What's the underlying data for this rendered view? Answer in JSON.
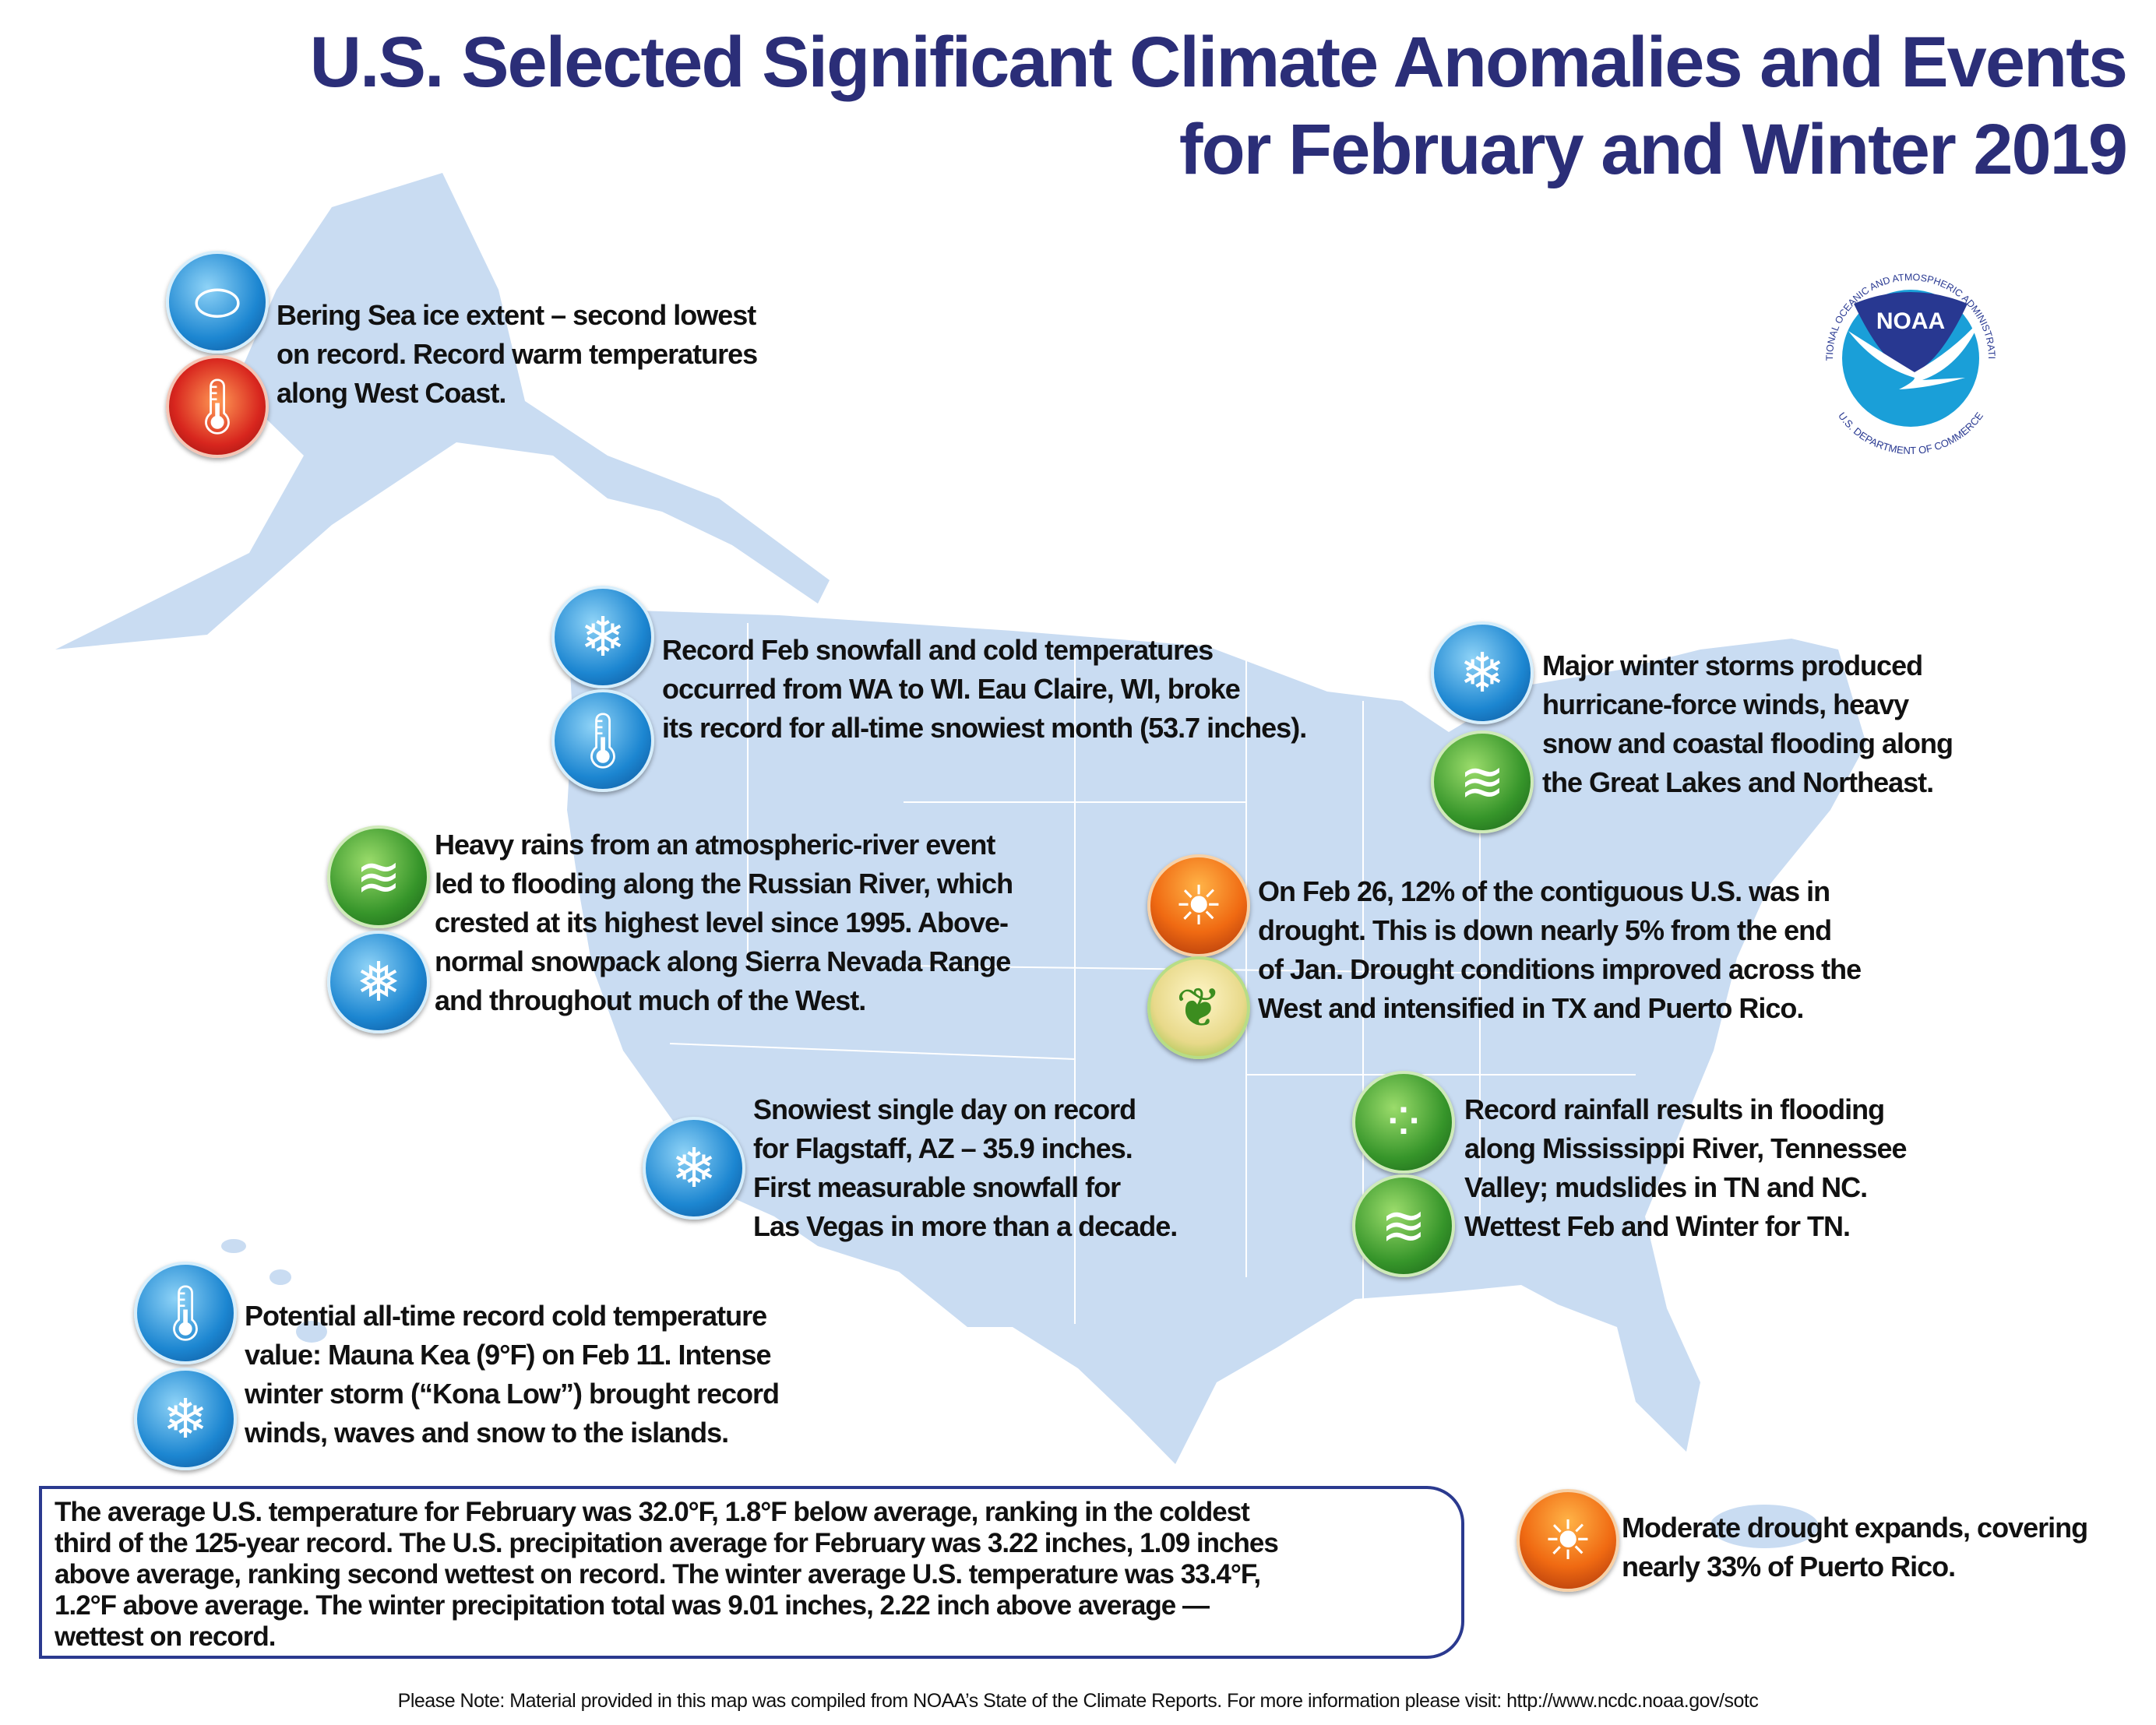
{
  "title": {
    "line1": "U.S. Selected Significant Climate Anomalies and Events",
    "line2": "for February and Winter 2019"
  },
  "logo": {
    "text": "NOAA",
    "ring_top": "NATIONAL OCEANIC AND ATMOSPHERIC ADMINISTRATION",
    "ring_bottom": "U.S. DEPARTMENT OF COMMERCE"
  },
  "colors": {
    "title": "#2b2e78",
    "land": "#c9dcf2",
    "box_border": "#2b3a8f"
  },
  "events": [
    {
      "region": "alaska",
      "icons": [
        "sea-ice-icon",
        "record-warm-icon"
      ],
      "lines": [
        "Bering Sea ice extent – second lowest",
        "on record. Record warm temperatures",
        "along West Coast."
      ]
    },
    {
      "region": "northwest-midwest",
      "icons": [
        "snowflake-icon",
        "record-cold-icon"
      ],
      "lines": [
        "Record Feb snowfall and cold temperatures",
        "occurred from WA to WI. Eau Claire, WI, broke",
        "its record for all-time snowiest month (53.7 inches)."
      ]
    },
    {
      "region": "northeast",
      "icons": [
        "snowflake-icon",
        "flooding-icon"
      ],
      "lines": [
        "Major winter storms produced",
        "hurricane-force winds, heavy",
        "snow and coastal flooding along",
        "the Great Lakes and Northeast."
      ]
    },
    {
      "region": "california",
      "icons": [
        "flooding-icon",
        "snowpack-icon"
      ],
      "lines": [
        "Heavy rains from an atmospheric-river event",
        "led to flooding along the Russian River, which",
        "crested at its highest level since 1995.  Above-",
        "normal snowpack along Sierra Nevada Range",
        "and throughout much of the West."
      ]
    },
    {
      "region": "central-drought",
      "icons": [
        "drought-icon",
        "drought-improvement-icon"
      ],
      "lines": [
        "On Feb 26, 12% of the contiguous U.S. was in",
        "drought. This is down nearly 5% from the end",
        "of Jan. Drought conditions improved across the",
        "West and intensified in TX and Puerto Rico."
      ]
    },
    {
      "region": "southwest",
      "icons": [
        "snowflake-icon"
      ],
      "lines": [
        "Snowiest single day on record",
        "for Flagstaff, AZ – 35.9 inches.",
        "First measurable snowfall for",
        "Las Vegas in more than a decade."
      ]
    },
    {
      "region": "southeast",
      "icons": [
        "heavy-rain-icon",
        "flooding-icon"
      ],
      "lines": [
        "Record rainfall results in flooding",
        "along Mississippi River, Tennessee",
        "Valley; mudslides in TN and NC.",
        "Wettest Feb and Winter for TN."
      ]
    },
    {
      "region": "hawaii",
      "icons": [
        "record-cold-icon",
        "snowflake-icon"
      ],
      "lines": [
        "Potential all-time record cold temperature",
        "value: Mauna Kea (9°F) on Feb 11. Intense",
        "winter storm (“Kona Low”) brought record",
        "winds, waves and snow to the islands."
      ]
    },
    {
      "region": "puerto-rico",
      "icons": [
        "drought-icon"
      ],
      "lines": [
        "Moderate drought expands, covering",
        "nearly 33% of Puerto Rico."
      ]
    }
  ],
  "summary": {
    "lines": [
      "The average U.S. temperature for February was 32.0°F, 1.8°F below average, ranking in the coldest",
      "third of the 125-year record. The U.S. precipitation average for February was 3.22 inches, 1.09 inches",
      "above average, ranking second wettest on record. The winter average U.S. temperature was 33.4°F,",
      "1.2°F above average. The winter precipitation total was 9.01 inches, 2.22 inch above average —",
      "wettest on record."
    ]
  },
  "footnote": "Please Note: Material provided in this map was compiled from NOAA’s State of the Climate Reports. For more information please visit: http://www.ncdc.noaa.gov/sotc"
}
